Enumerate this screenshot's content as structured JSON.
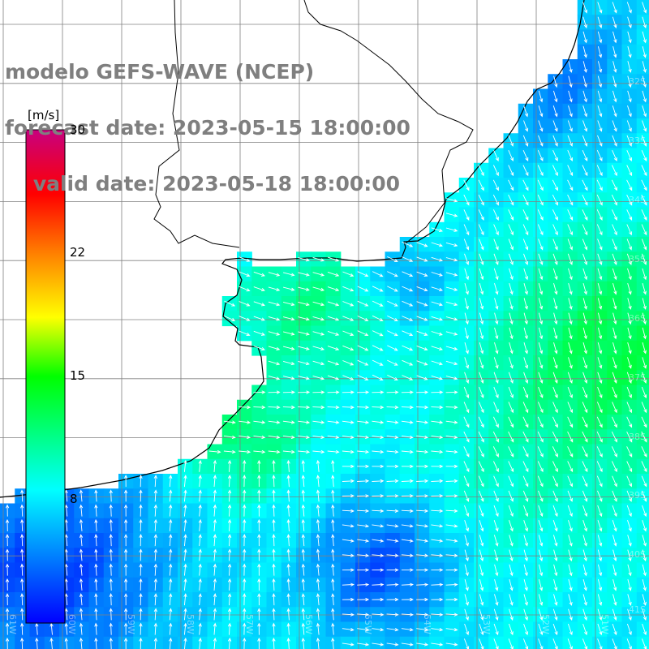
{
  "title": {
    "line1": "modelo GEFS-WAVE (NCEP)",
    "line2": "forecast date: 2023-05-15 18:00:00",
    "line3": "    valid date: 2023-05-18 18:00:00"
  },
  "colorbar": {
    "unit": "[m/s]",
    "ticks": [
      "30",
      "22",
      "15",
      "8"
    ],
    "min": 0,
    "max": 30
  },
  "grid": {
    "lat_labels": [
      "32S",
      "33S",
      "34S",
      "35S",
      "36S",
      "37S",
      "38S",
      "39S",
      "40S",
      "41S"
    ],
    "lon_labels": [
      "61W",
      "60W",
      "59W",
      "58W",
      "57W",
      "56W",
      "55W",
      "54W",
      "53W",
      "52W",
      "51W"
    ]
  },
  "colors": {
    "land": "#ffffff",
    "grid": "#808080",
    "coast": "#000000",
    "arrow": "#ffffff",
    "title": "#7f7f7f"
  }
}
